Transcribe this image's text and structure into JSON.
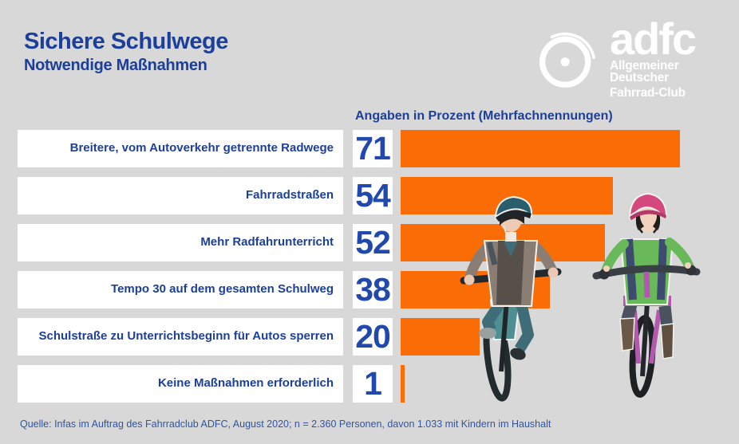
{
  "header": {
    "title": "Sichere Schulwege",
    "subtitle": "Notwendige Maßnahmen",
    "logo": {
      "brand": "adfc",
      "line1": "Allgemeiner Deutscher",
      "line2": "Fahrrad-Club"
    }
  },
  "chart_data": {
    "type": "bar",
    "orientation": "horizontal",
    "title": "Sichere Schulwege – Notwendige Maßnahmen",
    "value_header": "Angaben in Prozent (Mehrfachnennungen)",
    "unit": "percent",
    "categories": [
      "Breitere, vom Autoverkehr getrennte Radwege",
      "Fahrradstraßen",
      "Mehr Radfahrunterricht",
      "Tempo 30 auf dem gesamten Schulweg",
      "Schulstraße zu Unterrichtsbeginn für Autos sperren",
      "Keine Maßnahmen erforderlich"
    ],
    "values": [
      71,
      54,
      52,
      38,
      20,
      1
    ],
    "xlim": [
      0,
      100
    ],
    "grid": false,
    "legend": false,
    "bar_color": "#fa6c05",
    "label_color": "#1c3f9a",
    "value_color": "#2148ac"
  },
  "colors": {
    "background": "#d8d8d8",
    "box_white": "#ffffff",
    "bar_orange": "#fa6c05",
    "text_blue": "#1c3f9a",
    "logo_white": "#ffffff"
  },
  "illustration": {
    "name": "children-cycling-illustration",
    "description": "Two children wearing helmets riding bicycles"
  },
  "footer": {
    "source": "Quelle: Infas im Auftrag des Fahrradclub ADFC, August 2020; n = 2.360 Personen, davon 1.033 mit Kindern im Haushalt"
  }
}
